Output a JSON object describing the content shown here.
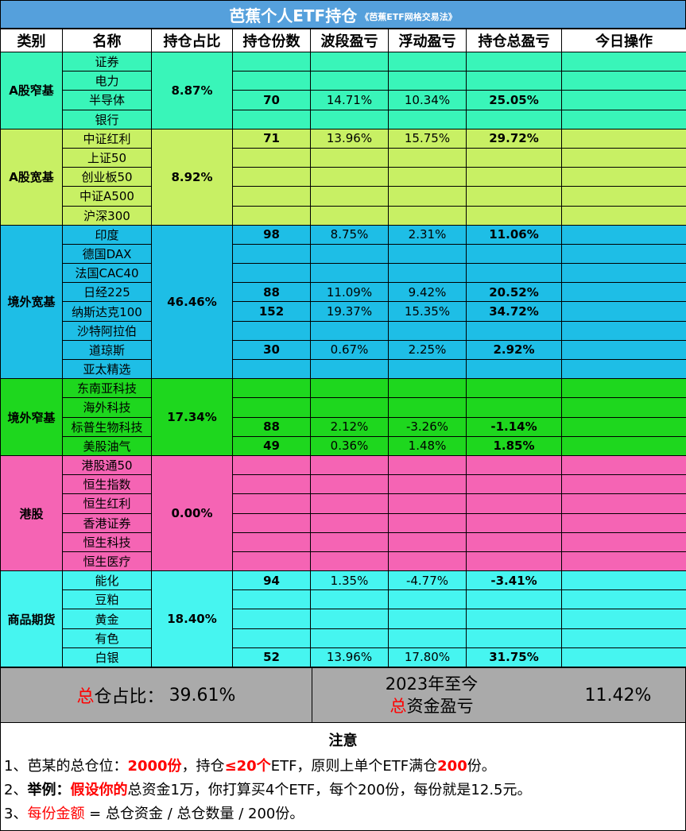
{
  "title": {
    "main": "芭蕉个人ETF持仓",
    "sub": "《芭蕉ETF网格交易法》"
  },
  "headers": [
    "类别",
    "名称",
    "持仓占比",
    "持仓份数",
    "波段盈亏",
    "浮动盈亏",
    "持仓总盈亏",
    "今日操作"
  ],
  "groups": [
    {
      "category": "A股窄基",
      "ratio": "8.87%",
      "rows": [
        {
          "name": "证券",
          "shares": "",
          "swing": "",
          "float": "",
          "total": "",
          "today": ""
        },
        {
          "name": "电力",
          "shares": "",
          "swing": "",
          "float": "",
          "total": "",
          "today": ""
        },
        {
          "name": "半导体",
          "shares": "70",
          "swing": "14.71%",
          "float": "10.34%",
          "total": "25.05%",
          "today": ""
        },
        {
          "name": "银行",
          "shares": "",
          "swing": "",
          "float": "",
          "total": "",
          "today": ""
        }
      ]
    },
    {
      "category": "A股宽基",
      "ratio": "8.92%",
      "rows": [
        {
          "name": "中证红利",
          "shares": "71",
          "swing": "13.96%",
          "float": "15.75%",
          "total": "29.72%",
          "today": ""
        },
        {
          "name": "上证50",
          "shares": "",
          "swing": "",
          "float": "",
          "total": "",
          "today": ""
        },
        {
          "name": "创业板50",
          "shares": "",
          "swing": "",
          "float": "",
          "total": "",
          "today": ""
        },
        {
          "name": "中证A500",
          "shares": "",
          "swing": "",
          "float": "",
          "total": "",
          "today": ""
        },
        {
          "name": "沪深300",
          "shares": "",
          "swing": "",
          "float": "",
          "total": "",
          "today": ""
        }
      ]
    },
    {
      "category": "境外宽基",
      "ratio": "46.46%",
      "rows": [
        {
          "name": "印度",
          "shares": "98",
          "swing": "8.75%",
          "float": "2.31%",
          "total": "11.06%",
          "today": ""
        },
        {
          "name": "德国DAX",
          "shares": "",
          "swing": "",
          "float": "",
          "total": "",
          "today": ""
        },
        {
          "name": "法国CAC40",
          "shares": "",
          "swing": "",
          "float": "",
          "total": "",
          "today": ""
        },
        {
          "name": "日经225",
          "shares": "88",
          "swing": "11.09%",
          "float": "9.42%",
          "total": "20.52%",
          "today": ""
        },
        {
          "name": "纳斯达克100",
          "shares": "152",
          "swing": "19.37%",
          "float": "15.35%",
          "total": "34.72%",
          "today": ""
        },
        {
          "name": "沙特阿拉伯",
          "shares": "",
          "swing": "",
          "float": "",
          "total": "",
          "today": ""
        },
        {
          "name": "道琼斯",
          "shares": "30",
          "swing": "0.67%",
          "float": "2.25%",
          "total": "2.92%",
          "today": ""
        },
        {
          "name": "亚太精选",
          "shares": "",
          "swing": "",
          "float": "",
          "total": "",
          "today": ""
        }
      ]
    },
    {
      "category": "境外窄基",
      "ratio": "17.34%",
      "rows": [
        {
          "name": "东南亚科技",
          "shares": "",
          "swing": "",
          "float": "",
          "total": "",
          "today": ""
        },
        {
          "name": "海外科技",
          "shares": "",
          "swing": "",
          "float": "",
          "total": "",
          "today": ""
        },
        {
          "name": "标普生物科技",
          "shares": "88",
          "swing": "2.12%",
          "float": "-3.26%",
          "total": "-1.14%",
          "today": ""
        },
        {
          "name": "美股油气",
          "shares": "49",
          "swing": "0.36%",
          "float": "1.48%",
          "total": "1.85%",
          "today": ""
        }
      ]
    },
    {
      "category": "港股",
      "ratio": "0.00%",
      "rows": [
        {
          "name": "港股通50",
          "shares": "",
          "swing": "",
          "float": "",
          "total": "",
          "today": ""
        },
        {
          "name": "恒生指数",
          "shares": "",
          "swing": "",
          "float": "",
          "total": "",
          "today": ""
        },
        {
          "name": "恒生红利",
          "shares": "",
          "swing": "",
          "float": "",
          "total": "",
          "today": ""
        },
        {
          "name": "香港证券",
          "shares": "",
          "swing": "",
          "float": "",
          "total": "",
          "today": ""
        },
        {
          "name": "恒生科技",
          "shares": "",
          "swing": "",
          "float": "",
          "total": "",
          "today": ""
        },
        {
          "name": "恒生医疗",
          "shares": "",
          "swing": "",
          "float": "",
          "total": "",
          "today": ""
        }
      ]
    },
    {
      "category": "商品期货",
      "ratio": "18.40%",
      "rows": [
        {
          "name": "能化",
          "shares": "94",
          "swing": "1.35%",
          "float": "-4.77%",
          "total": "-3.41%",
          "today": ""
        },
        {
          "name": "豆粕",
          "shares": "",
          "swing": "",
          "float": "",
          "total": "",
          "today": ""
        },
        {
          "name": "黄金",
          "shares": "",
          "swing": "",
          "float": "",
          "total": "",
          "today": ""
        },
        {
          "name": "有色",
          "shares": "",
          "swing": "",
          "float": "",
          "total": "",
          "today": ""
        },
        {
          "name": "白银",
          "shares": "52",
          "swing": "13.96%",
          "float": "17.80%",
          "total": "31.75%",
          "today": ""
        }
      ]
    }
  ],
  "summary": {
    "position_prefix_red": "总",
    "position_label": "仓占比：",
    "position_value": "39.61%",
    "pnl_line1": "2023年至今",
    "pnl_prefix_red": "总",
    "pnl_label": "资金盈亏",
    "pnl_value": "11.42%"
  },
  "notes": {
    "title": "注意",
    "line1": {
      "a": "1、芭某的总仓位：",
      "b": "2000份",
      "c": "，持仓",
      "d": "≤20个",
      "e": "ETF，原则上单个ETF满仓",
      "f": "200",
      "g": "份。"
    },
    "line2": {
      "a": "2、",
      "b": "举例：",
      "c": "假设你的",
      "d": "总资金1万，你打算买4个ETF，每个200份，每份就是12.5元。"
    },
    "line3": {
      "a": "3、",
      "b": "每份金额",
      "c": " = 总仓资金 / 总仓数量 / 200份。"
    }
  },
  "colors": {
    "title_bar": "#55a0dc",
    "a_narrow": "#39f5b9",
    "a_broad": "#c8f064",
    "overseas_broad": "#1ebee6",
    "overseas_narrow": "#1ed71e",
    "hk": "#f564b4",
    "commodities": "#46f5f0",
    "summary_bg": "#aaaaaa",
    "highlight_red": "#ff0000"
  }
}
